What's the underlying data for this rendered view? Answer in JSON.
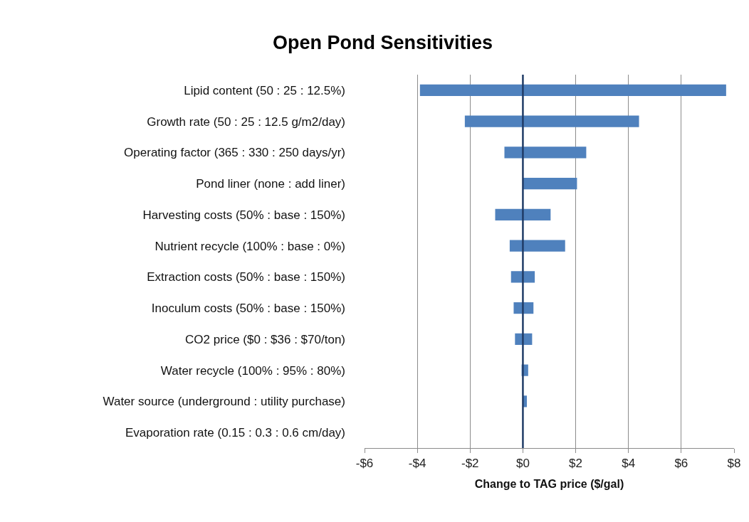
{
  "chart_data": {
    "type": "bar",
    "orientation": "horizontal",
    "title": "Open Pond Sensitivities",
    "xlabel": "Change to TAG price ($/gal)",
    "categories": [
      "Lipid content (50 : 25 : 12.5%)",
      "Growth rate (50 : 25 : 12.5 g/m2/day)",
      "Operating factor (365 : 330 : 250 days/yr)",
      "Pond liner (none : add liner)",
      "Harvesting costs (50% : base : 150%)",
      "Nutrient recycle (100% : base : 0%)",
      "Extraction costs (50% : base : 150%)",
      "Inoculum costs (50% : base : 150%)",
      "CO2 price ($0 : $36 : $70/ton)",
      "Water recycle (100% : 95% : 80%)",
      "Water source (underground : utility purchase)",
      "Evaporation rate (0.15 : 0.3 : 0.6 cm/day)"
    ],
    "base": [
      -3.9,
      -2.2,
      -0.7,
      0,
      -1.05,
      -0.5,
      -0.45,
      -0.35,
      -0.3,
      -0.05,
      0,
      null
    ],
    "values": [
      11.6,
      6.6,
      3.1,
      2.05,
      2.1,
      2.1,
      0.9,
      0.75,
      0.65,
      0.25,
      0.15,
      null
    ],
    "color": "#4f81bd",
    "xlim": [
      -6,
      8
    ],
    "xticks": [
      {
        "value": -6,
        "label": "-$6"
      },
      {
        "value": -4,
        "label": "-$4"
      },
      {
        "value": -2,
        "label": "-$2"
      },
      {
        "value": 0,
        "label": "$0"
      },
      {
        "value": 2,
        "label": "$2"
      },
      {
        "value": 4,
        "label": "$4"
      },
      {
        "value": 6,
        "label": "$6"
      },
      {
        "value": 8,
        "label": "$8"
      }
    ],
    "grid": "x",
    "ref_lines": [
      {
        "axis": "x",
        "value": 0,
        "color": "#1f3b66"
      }
    ]
  }
}
